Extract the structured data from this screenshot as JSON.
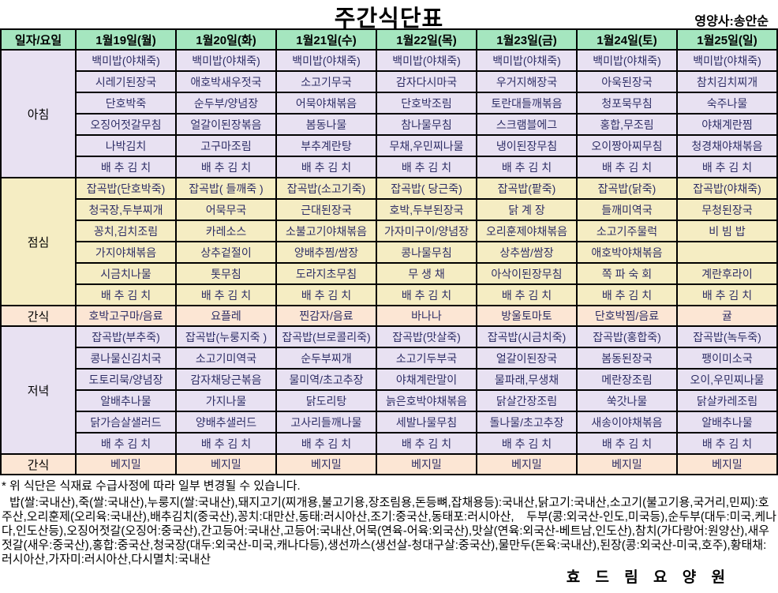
{
  "title": "주간식단표",
  "nutritionist": "영양사:송안순",
  "colors": {
    "header_green": "#a5e6bf",
    "lavender": "#e8e1f2",
    "yellow": "#f5edc3",
    "peach": "#fce6d4",
    "cell_text": "#2e2e66",
    "border": "#000000"
  },
  "table": {
    "corner_label": "일자/요일",
    "day_headers": [
      "1월19일(월)",
      "1월20일(화)",
      "1월21일(수)",
      "1월22일(목)",
      "1월23일(금)",
      "1월24일(토)",
      "1월25일(일)"
    ],
    "sections": [
      {
        "name": "breakfast",
        "label": "아침",
        "color": "lavender",
        "multi": true,
        "menus": [
          [
            "백미밥(야채죽)",
            "시레기된장국",
            "단호박죽",
            "오징어젓갈무침",
            "나박김치",
            "배 추 김 치"
          ],
          [
            "백미밥(야채죽)",
            "애호박새우젓국",
            "순두부/양념장",
            "얼갈이된장볶음",
            "고구마조림",
            "배 추 김 치"
          ],
          [
            "백미밥(야채죽)",
            "소고기무국",
            "어묵야채볶음",
            "봄동나물",
            "부추계란탕",
            "배 추 김 치"
          ],
          [
            "백미밥(야채죽)",
            "감자다시마국",
            "단호박조림",
            "참나물무침",
            "무채,우민찌나물",
            "배 추 김 치"
          ],
          [
            "백미밥(야채죽)",
            "우거지해장국",
            "토란대들깨볶음",
            "스크램블에그",
            "냉이된장무침",
            "배 추 김 치"
          ],
          [
            "백미밥(야채죽)",
            "아욱된장국",
            "청포묵무침",
            "홍합,무조림",
            "오이짱아찌무침",
            "배 추 김 치"
          ],
          [
            "백미밥(야채죽)",
            "참치김치찌개",
            "숙주나물",
            "야채계란찜",
            "청경채야채볶음",
            "배 추 김 치"
          ]
        ]
      },
      {
        "name": "lunch",
        "label": "점심",
        "color": "yellow",
        "multi": true,
        "menus": [
          [
            "잡곡밥(단호박죽)",
            "청국장,두부찌개",
            "꽁치,김치조림",
            "가지야채볶음",
            "시금치나물",
            "배 추 김 치"
          ],
          [
            "잡곡밥( 들깨죽 )",
            "어묵무국",
            "카레소스",
            "상추겉절이",
            "톳무침",
            "배 추 김 치"
          ],
          [
            "잡곡밥(소고기죽)",
            "근대된장국",
            "소불고기야채볶음",
            "양배추찜/쌈장",
            "도라지초무침",
            "배 추 김 치"
          ],
          [
            "잡곡밥( 당근죽)",
            "호박,두부된장국",
            "가자미구이/양념장",
            "콩나물무침",
            "무 생 채",
            "배 추 김 치"
          ],
          [
            "잡곡밥(팥죽)",
            "닭 계 장",
            "오리훈제야채볶음",
            "상추쌈/쌈장",
            "아삭이된장무침",
            "배 추 김 치"
          ],
          [
            "잡곡밥(닭죽)",
            "들깨미역국",
            "소고기주물럭",
            "애호박야채볶음",
            "쪽 파 숙 회",
            "배 추 김 치"
          ],
          [
            "잡곡밥(야채죽)",
            "무청된장국",
            "비 빔 밥",
            "",
            "계란후라이",
            "배 추 김 치"
          ]
        ]
      },
      {
        "name": "snack-afternoon",
        "label": "간식",
        "color": "peach",
        "multi": false,
        "menus": [
          "호박고구마/음료",
          "요플레",
          "찐감자/음료",
          "바나나",
          "방울토마토",
          "단호박찜/음료",
          "귤"
        ]
      },
      {
        "name": "dinner",
        "label": "저녁",
        "color": "lavender",
        "multi": true,
        "menus": [
          [
            "잡곡밥(부추죽)",
            "콩나물신김치국",
            "도토리묵/양념장",
            "알배추나물",
            "닭가슴살샐러드",
            "배 추 김 치"
          ],
          [
            "잡곡밥(누룽지죽 )",
            "소고기미역국",
            "감자채당근볶음",
            "가지나물",
            "양배추샐러드",
            "배 추 김 치"
          ],
          [
            "잡곡밥(브로콜리죽)",
            "순두부찌개",
            "물미역/초고추장",
            "닭도리탕",
            "고사리들깨나물",
            "배 추 김 치"
          ],
          [
            "잡곡밥(맛살죽)",
            "소고기두부국",
            "야채계란말이",
            "늙은호박야채볶음",
            "세발나물무침",
            "배 추 김 치"
          ],
          [
            "잡곡밥(시금치죽)",
            "얼갈이된장국",
            "물파래,무생채",
            "닭살간장조림",
            "돌나물/초고추장",
            "배 추 김 치"
          ],
          [
            "잡곡밥(홍합죽)",
            "봄동된장국",
            "메란장조림",
            "쑥갓나물",
            "새송이야채볶음",
            "배 추 김 치"
          ],
          [
            "잡곡밥(녹두죽)",
            "팽이미소국",
            "오이,우민찌나물",
            "닭살카레조림",
            "알배추나물",
            "배 추 김 치"
          ]
        ]
      },
      {
        "name": "snack-evening",
        "label": "간식",
        "color": "peach",
        "multi": false,
        "menus": [
          "베지밀",
          "베지밀",
          "베지밀",
          "베지밀",
          "베지밀",
          "베지밀",
          "베지밀"
        ]
      }
    ]
  },
  "footnote": "* 위 식단은 식재료 수급사정에 따라 일부 변경될 수 있습니다.",
  "origin_text": "밥(쌀:국내산),죽(쌀:국내산),누룽지(쌀:국내산),돼지고기(찌개용,불고기용,장조림용,돈등뼈,잡채용등):국내산,닭고기:국내산,소고기(불고기용,국거리,민찌):호주산,오리훈제(오리육:국내산),배추김치(중국산),꽁치:대만산,동태:러시아산,조기:중국산,동태포:러시아산, 두부(콩:외국산-인도,미국등),순두부(대두:미국,케나다,인도산등),오징어젓갈(오징어:중국산),간고등어:국내산,고등어:국내산,어묵(연육-어육:외국산),맛살(연육:외국산-베트남,인도산),참치(가다랑어:원양산),새우젓갈(새우:중국산),홍합:중국산,청국장(대두:외국산-미국,캐나다등),생선까스(생선살-청대구살:중국산),물만두(돈육:국내산),된장(콩:외국산-미국,호주),황태채:러시아산,가자미:러시아산,다시멸치:국내산",
  "facility": "효 드 림 요 양 원"
}
